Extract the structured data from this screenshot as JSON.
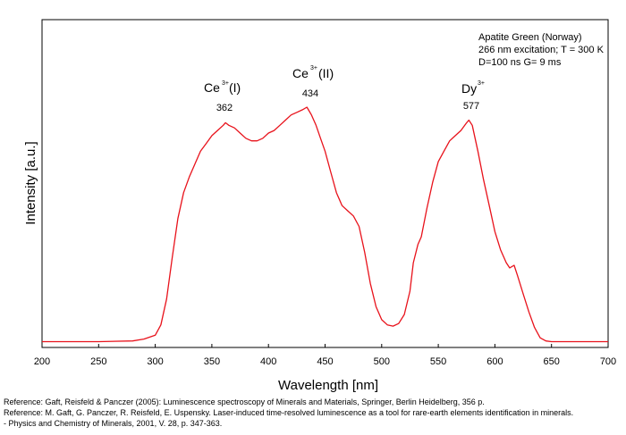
{
  "chart_data": {
    "type": "line",
    "xlabel": "Wavelength [nm]",
    "ylabel": "Intensity [a.u.]",
    "xlim": [
      200,
      700
    ],
    "ylim": [
      0,
      100
    ],
    "x_ticks": [
      200,
      250,
      300,
      350,
      400,
      450,
      500,
      550,
      600,
      650,
      700
    ],
    "y_ticks_visible": false,
    "grid": false,
    "line_color": "#e8121b",
    "info_box": {
      "position": "top-right",
      "lines": [
        "Apatite Green (Norway)",
        "266 nm excitation; T = 300 K",
        "D=100 ns G= 9 ms"
      ]
    },
    "peaks": [
      {
        "ion": "Ce",
        "charge": "3+",
        "site": "(I)",
        "wavelength": "362"
      },
      {
        "ion": "Ce",
        "charge": "3+",
        "site": "(II)",
        "wavelength": "434"
      },
      {
        "ion": "Dy",
        "charge": "3+",
        "site": "",
        "wavelength": "577"
      }
    ],
    "series": [
      {
        "x": [
          200,
          250,
          280,
          290,
          300,
          305,
          310,
          315,
          320,
          325,
          330,
          335,
          340,
          345,
          350,
          355,
          360,
          362,
          365,
          370,
          375,
          380,
          385,
          390,
          395,
          400,
          405,
          410,
          415,
          420,
          425,
          430,
          434,
          438,
          442,
          446,
          450,
          455,
          460,
          465,
          470,
          475,
          480,
          485,
          490,
          495,
          500,
          505,
          510,
          515,
          520,
          525,
          528,
          532,
          535,
          540,
          545,
          550,
          555,
          560,
          565,
          570,
          575,
          577,
          580,
          585,
          590,
          595,
          600,
          605,
          610,
          613,
          617,
          620,
          625,
          630,
          635,
          640,
          645,
          650,
          700
        ],
        "y": [
          0.5,
          0.5,
          0.8,
          1.5,
          3,
          7,
          17,
          33,
          48,
          58,
          64,
          69,
          74,
          77,
          80,
          82,
          84,
          85,
          84,
          83,
          81,
          79,
          78,
          78,
          79,
          81,
          82,
          84,
          86,
          88,
          89,
          90,
          91,
          88,
          84,
          79,
          74,
          66,
          58,
          53,
          51,
          49,
          45,
          35,
          23,
          14,
          9,
          7,
          6.5,
          7.5,
          11,
          20,
          31,
          38,
          41,
          52,
          62,
          70,
          74,
          78,
          80,
          82,
          85,
          86,
          84,
          74,
          63,
          53,
          43,
          36,
          31,
          29,
          30,
          26,
          19,
          12,
          6,
          2,
          0.8,
          0.5,
          0.5
        ]
      }
    ]
  },
  "references": [
    "Reference: Gaft, Reisfeld & Panczer (2005): Luminescence spectroscopy of Minerals and Materials, Springer, Berlin Heidelberg, 356 p.",
    "Reference: M. Gaft, G. Panczer, R. Reisfeld, E. Uspensky. Laser-induced time-resolved luminescence as a tool for rare-earth elements identification in minerals.",
    "- Physics and Chemistry of Minerals, 2001, V. 28, p. 347-363."
  ]
}
